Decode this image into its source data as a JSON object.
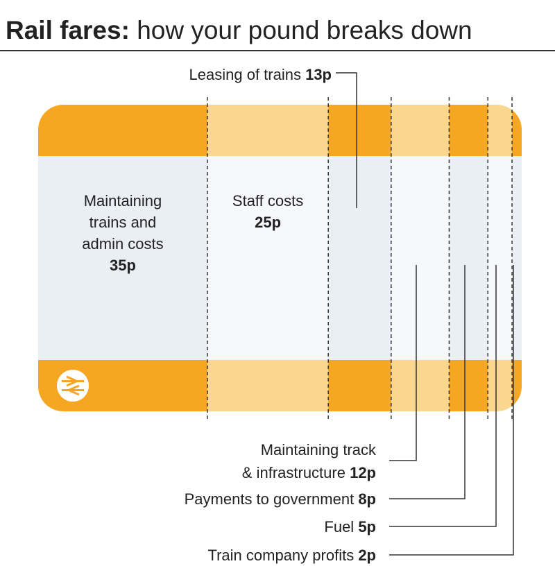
{
  "header": {
    "title_bold": "Rail fares:",
    "title_rest": "how your pound breaks down"
  },
  "colors": {
    "band_dark": "#f5a623",
    "band_light": "#fad68f",
    "body_light": "#eaeef5",
    "body_white": "#f7f8fb",
    "logo_fill": "#fad68f",
    "logo_stroke": "#f5a623",
    "line": "#333333"
  },
  "icons": {
    "logo": "national-rail-logo-icon"
  },
  "chart_data": {
    "type": "stacked-bar",
    "total": 100,
    "unit": "p",
    "segments": [
      {
        "label_lines": [
          "Maintaining",
          "trains and",
          "admin costs"
        ],
        "value": 35,
        "value_label": "35p"
      },
      {
        "label_lines": [
          "Staff costs"
        ],
        "value": 25,
        "value_label": "25p"
      },
      {
        "label_lines": [
          "Leasing of trains"
        ],
        "value": 13,
        "value_label": "13p"
      },
      {
        "label_lines": [
          "Maintaining track",
          "& infrastructure"
        ],
        "value": 12,
        "value_label": "12p"
      },
      {
        "label_lines": [
          "Payments to government"
        ],
        "value": 8,
        "value_label": "8p"
      },
      {
        "label_lines": [
          "Fuel"
        ],
        "value": 5,
        "value_label": "5p"
      },
      {
        "label_lines": [
          "Train company profits"
        ],
        "value": 2,
        "value_label": "2p"
      }
    ]
  }
}
